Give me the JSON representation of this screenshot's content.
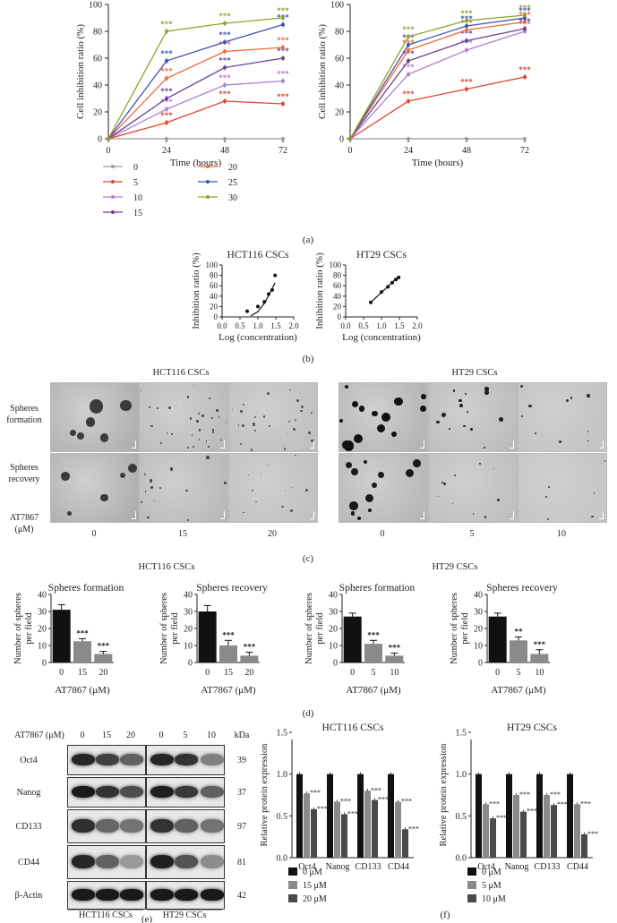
{
  "panel_letters": [
    "(a)",
    "(b)",
    "(c)",
    "(d)",
    "(e)",
    "(f)"
  ],
  "colors": {
    "c0": "#9a9a9a",
    "c5": "#e2432e",
    "c10": "#b07fcf",
    "c15": "#6b3f94",
    "c20": "#ef6b33",
    "c25": "#3f51b5",
    "c30": "#8fa42a",
    "bar0": "#111111",
    "bar1": "#8a8a8a",
    "bar2": "#4a4a4a"
  },
  "panel_a": {
    "legend": [
      "0",
      "5",
      "10",
      "15",
      "20",
      "25",
      "30"
    ],
    "charts": [
      {
        "type": "line",
        "ylabel": "Cell inhibition ratio (%)",
        "xlabel": "Time (hours)",
        "x": [
          0,
          24,
          48,
          72
        ],
        "xlim": [
          0,
          72
        ],
        "ylim": [
          0,
          100
        ],
        "yticks": [
          0,
          20,
          40,
          60,
          80,
          100
        ],
        "sig": "***",
        "series": [
          {
            "name": "0",
            "color": "#9a9a9a",
            "values": [
              0,
              0,
              0,
              0
            ]
          },
          {
            "name": "5",
            "color": "#e2432e",
            "values": [
              0,
              12,
              28,
              26
            ]
          },
          {
            "name": "10",
            "color": "#b07fcf",
            "values": [
              0,
              22,
              40,
              43
            ]
          },
          {
            "name": "15",
            "color": "#6b3f94",
            "values": [
              0,
              30,
              53,
              60
            ]
          },
          {
            "name": "20",
            "color": "#ef6b33",
            "values": [
              0,
              45,
              65,
              68
            ]
          },
          {
            "name": "25",
            "color": "#3f51b5",
            "values": [
              0,
              58,
              72,
              85
            ]
          },
          {
            "name": "30",
            "color": "#8fa42a",
            "values": [
              0,
              80,
              86,
              90
            ]
          }
        ]
      },
      {
        "type": "line",
        "ylabel": "Cell inhibition ratio (%)",
        "xlabel": "Time (hours)",
        "x": [
          0,
          24,
          48,
          72
        ],
        "xlim": [
          0,
          72
        ],
        "ylim": [
          0,
          100
        ],
        "yticks": [
          0,
          20,
          40,
          60,
          80,
          100
        ],
        "sig": "***",
        "series": [
          {
            "name": "0",
            "color": "#9a9a9a",
            "values": [
              0,
              0,
              0,
              0
            ]
          },
          {
            "name": "5",
            "color": "#e2432e",
            "values": [
              0,
              28,
              37,
              46
            ]
          },
          {
            "name": "10",
            "color": "#b07fcf",
            "values": [
              0,
              48,
              66,
              80
            ]
          },
          {
            "name": "15",
            "color": "#6b3f94",
            "values": [
              0,
              58,
              73,
              82
            ]
          },
          {
            "name": "20",
            "color": "#ef6b33",
            "values": [
              0,
              66,
              81,
              87
            ]
          },
          {
            "name": "25",
            "color": "#3f51b5",
            "values": [
              0,
              70,
              84,
              90
            ]
          },
          {
            "name": "30",
            "color": "#8fa42a",
            "values": [
              0,
              76,
              88,
              92
            ]
          }
        ]
      }
    ]
  },
  "panel_b": {
    "charts": [
      {
        "type": "scatter",
        "title": "HCT116 CSCs",
        "ylabel": "Inhibition ratio (%)",
        "xlabel": "Log (concentration)",
        "xlim": [
          0,
          2
        ],
        "ylim": [
          0,
          100
        ],
        "xticks": [
          "0.0",
          "0.5",
          "1.0",
          "1.5",
          "2.0"
        ],
        "yticks": [
          "0",
          "20",
          "40",
          "60",
          "80",
          "100"
        ],
        "points": [
          [
            0.7,
            11
          ],
          [
            1.0,
            20
          ],
          [
            1.18,
            29
          ],
          [
            1.3,
            44
          ],
          [
            1.4,
            52
          ],
          [
            1.48,
            80
          ]
        ],
        "fit": [
          [
            0.8,
            2
          ],
          [
            1.0,
            10
          ],
          [
            1.2,
            28
          ],
          [
            1.35,
            48
          ],
          [
            1.48,
            66
          ]
        ]
      },
      {
        "type": "scatter",
        "title": "HT29 CSCs",
        "ylabel": "Inhibition ratio (%)",
        "xlabel": "Log (concentration)",
        "xlim": [
          0,
          2
        ],
        "ylim": [
          0,
          100
        ],
        "xticks": [
          "0.0",
          "0.5",
          "1.0",
          "1.5",
          "2.0"
        ],
        "yticks": [
          "0",
          "20",
          "40",
          "60",
          "80",
          "100"
        ],
        "points": [
          [
            0.7,
            28
          ],
          [
            1.0,
            48
          ],
          [
            1.18,
            58
          ],
          [
            1.3,
            66
          ],
          [
            1.4,
            72
          ],
          [
            1.48,
            76
          ]
        ],
        "fit": [
          [
            0.7,
            28
          ],
          [
            1.48,
            78
          ]
        ]
      }
    ]
  },
  "panel_c": {
    "group1": "HCT116 CSCs",
    "group2": "HT29 CSCs",
    "row1": "Spheres formation",
    "row2": "Spheres recovery",
    "drug_label": "AT7867",
    "unit_label": "(μM)",
    "conc1": [
      "0",
      "15",
      "20"
    ],
    "conc2": [
      "0",
      "5",
      "10"
    ]
  },
  "panel_d": {
    "group1": "HCT116 CSCs",
    "group2": "HT29 CSCs",
    "ylabel": "Number of spheres per field",
    "xlabel": "AT7867 (μM)",
    "charts": [
      {
        "type": "bar",
        "title": "Spheres formation",
        "categories": [
          "0",
          "15",
          "20"
        ],
        "values": [
          31,
          12.5,
          5
        ],
        "errors": [
          3,
          1.5,
          1.5
        ],
        "sig": [
          "",
          "***",
          "***"
        ],
        "ylim": [
          0,
          40
        ]
      },
      {
        "type": "bar",
        "title": "Spheres recovery",
        "categories": [
          "0",
          "15",
          "20"
        ],
        "values": [
          30,
          10,
          4
        ],
        "errors": [
          3.5,
          3,
          2
        ],
        "sig": [
          "",
          "***",
          "***"
        ],
        "ylim": [
          0,
          40
        ]
      },
      {
        "type": "bar",
        "title": "Spheres formation",
        "categories": [
          "0",
          "5",
          "10"
        ],
        "values": [
          27,
          11,
          4
        ],
        "errors": [
          2,
          2,
          1.5
        ],
        "sig": [
          "",
          "***",
          "***"
        ],
        "ylim": [
          0,
          40
        ]
      },
      {
        "type": "bar",
        "title": "Spheres recovery",
        "categories": [
          "0",
          "5",
          "10"
        ],
        "values": [
          27,
          13,
          5
        ],
        "errors": [
          2,
          2,
          2.5
        ],
        "sig": [
          "",
          "**",
          "***"
        ],
        "ylim": [
          0,
          40
        ]
      }
    ]
  },
  "panel_e": {
    "drug_label": "AT7867 (μM)",
    "conc1": [
      "0",
      "15",
      "20"
    ],
    "conc2": [
      "0",
      "5",
      "10"
    ],
    "kda_label": "kDa",
    "proteins": [
      {
        "name": "Oct4",
        "kda": "39",
        "i1": [
          0.85,
          0.75,
          0.62
        ],
        "i2": [
          0.85,
          0.8,
          0.5
        ]
      },
      {
        "name": "Nanog",
        "kda": "37",
        "i1": [
          0.9,
          0.8,
          0.7
        ],
        "i2": [
          0.88,
          0.78,
          0.62
        ]
      },
      {
        "name": "CD133",
        "kda": "97",
        "i1": [
          0.82,
          0.6,
          0.55
        ],
        "i2": [
          0.8,
          0.62,
          0.55
        ]
      },
      {
        "name": "CD44",
        "kda": "81",
        "i1": [
          0.85,
          0.62,
          0.4
        ],
        "i2": [
          0.88,
          0.68,
          0.45
        ]
      },
      {
        "name": "β-Actin",
        "kda": "42",
        "i1": [
          0.9,
          0.9,
          0.9
        ],
        "i2": [
          0.9,
          0.9,
          0.9
        ]
      }
    ],
    "cell1": "HCT116 CSCs",
    "cell2": "HT29 CSCs"
  },
  "panel_f": {
    "ylabel": "Relative protein expression",
    "charts": [
      {
        "type": "bar",
        "title": "HCT116 CSCs",
        "categories": [
          "Oct4",
          "Nanog",
          "CD133",
          "CD44"
        ],
        "ylim": [
          0,
          1.5
        ],
        "yticks": [
          "0.0",
          "0.5",
          "1.0",
          "1.5"
        ],
        "series": [
          {
            "name": "0 μM",
            "values": [
              1,
              1,
              1,
              1
            ]
          },
          {
            "name": "15 μM",
            "values": [
              0.77,
              0.67,
              0.8,
              0.67
            ]
          },
          {
            "name": "20 μM",
            "values": [
              0.58,
              0.52,
              0.69,
              0.34
            ]
          }
        ],
        "sig": "***"
      },
      {
        "type": "bar",
        "title": "HT29 CSCs",
        "categories": [
          "Oct4",
          "Nanog",
          "CD133",
          "CD44"
        ],
        "ylim": [
          0,
          1.5
        ],
        "yticks": [
          "0.0",
          "0.5",
          "1.0",
          "1.5"
        ],
        "series": [
          {
            "name": "0 μM",
            "values": [
              1,
              1,
              1,
              1
            ]
          },
          {
            "name": "5 μM",
            "values": [
              0.64,
              0.75,
              0.75,
              0.64
            ]
          },
          {
            "name": "10 μM",
            "values": [
              0.47,
              0.55,
              0.63,
              0.28
            ]
          }
        ],
        "sig": "***"
      }
    ]
  }
}
